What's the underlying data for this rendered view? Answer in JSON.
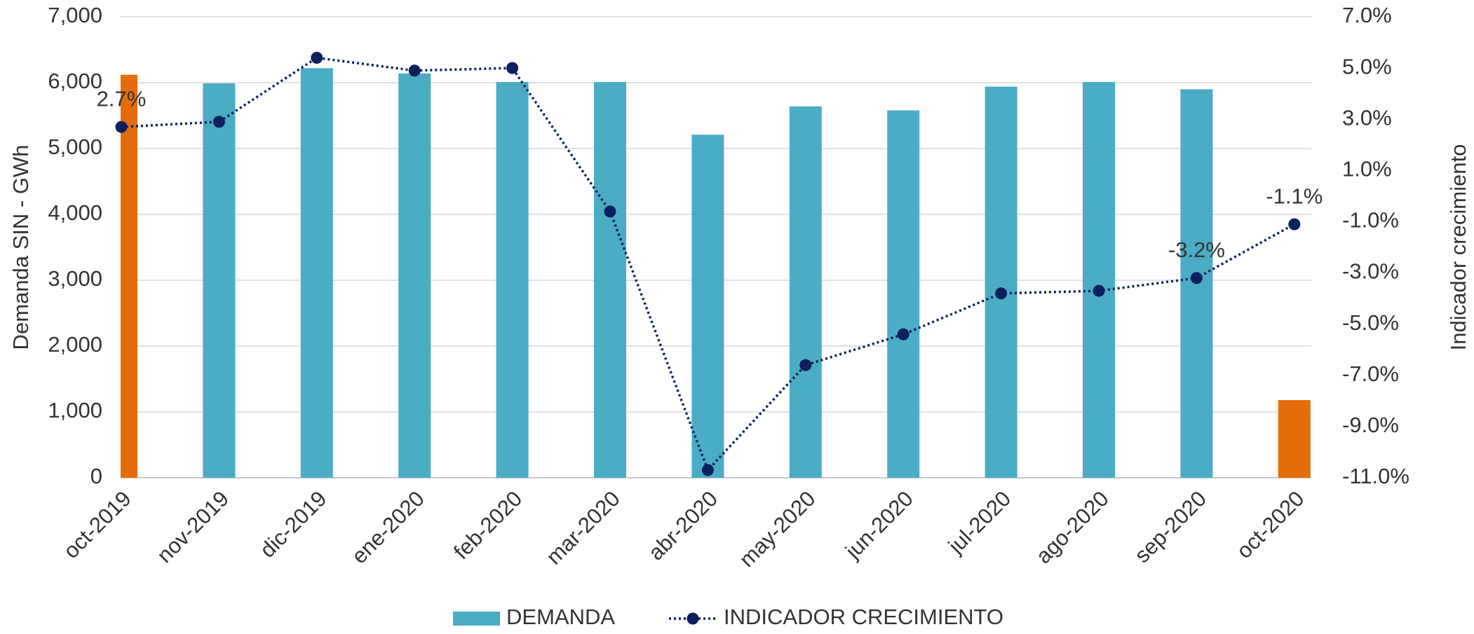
{
  "chart_data": {
    "type": "bar_line",
    "categories": [
      "oct-2019",
      "nov-2019",
      "dic-2019",
      "ene-2020",
      "feb-2020",
      "mar-2020",
      "abr-2020",
      "may-2020",
      "jun-2020",
      "jul-2020",
      "ago-2020",
      "sep-2020",
      "oct-2020"
    ],
    "series": [
      {
        "name": "DEMANDA",
        "type": "bar",
        "color": "#4bacc6",
        "colors": [
          "#e46c0a",
          "#4bacc6",
          "#4bacc6",
          "#4bacc6",
          "#4bacc6",
          "#4bacc6",
          "#4bacc6",
          "#4bacc6",
          "#4bacc6",
          "#4bacc6",
          "#4bacc6",
          "#4bacc6",
          "#e46c0a"
        ],
        "values": [
          6120,
          5990,
          6220,
          6140,
          6010,
          6010,
          5210,
          5640,
          5580,
          5940,
          6010,
          5900,
          1180
        ]
      },
      {
        "name": "INDICADOR CRECIMIENTO",
        "type": "line",
        "axis": "y2",
        "color": "#0d1f5c",
        "values": [
          2.7,
          2.9,
          5.4,
          4.9,
          5.0,
          -0.6,
          -10.7,
          -6.6,
          -5.4,
          -3.8,
          -3.7,
          -3.2,
          -1.1
        ],
        "value_labels": [
          "2.7%",
          null,
          null,
          null,
          null,
          null,
          null,
          null,
          null,
          null,
          null,
          "-3.2%",
          "-1.1%"
        ]
      }
    ],
    "ylabel": "Demanda  SIN - GWh",
    "y2label": "Indicador  crecimiento",
    "ylim": [
      0,
      7000
    ],
    "yticks": [
      0,
      {
        "value": 1000,
        "label": "1,000"
      },
      {
        "value": 2000,
        "label": "2,000"
      },
      {
        "value": 3000,
        "label": "3,000"
      },
      {
        "value": 4000,
        "label": "4,000"
      },
      {
        "value": 5000,
        "label": "5,000"
      },
      {
        "value": 6000,
        "label": "6,000"
      },
      {
        "value": 7000,
        "label": "7,000"
      }
    ],
    "y2lim": [
      -11,
      7
    ],
    "y2ticks": [
      {
        "value": -11,
        "label": "-11.0%"
      },
      {
        "value": -9,
        "label": "-9.0%"
      },
      {
        "value": -7,
        "label": "-7.0%"
      },
      {
        "value": -5,
        "label": "-5.0%"
      },
      {
        "value": -3,
        "label": "-3.0%"
      },
      {
        "value": -1,
        "label": "-1.0%"
      },
      {
        "value": 1,
        "label": "1.0%"
      },
      {
        "value": 3,
        "label": "3.0%"
      },
      {
        "value": 5,
        "label": "5.0%"
      },
      {
        "value": 7,
        "label": "7.0%"
      }
    ],
    "grid": true,
    "legend": "bottom"
  }
}
